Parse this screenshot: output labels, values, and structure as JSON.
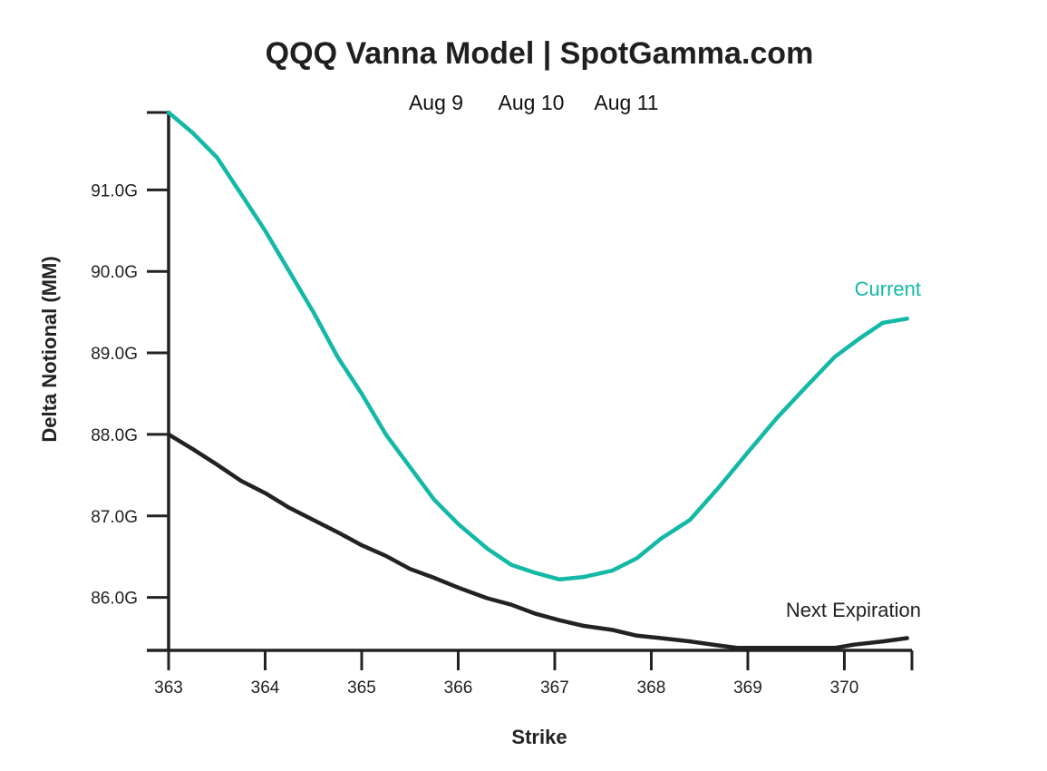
{
  "chart_data": {
    "type": "line",
    "title": "QQQ Vanna Model | SpotGamma.com",
    "subtitle_dates": [
      "Aug 9",
      "Aug 10",
      "Aug 11"
    ],
    "xlabel": "Strike",
    "ylabel": "Delta Notional (MM)",
    "xlim": [
      363,
      370.7
    ],
    "ylim": [
      85.35,
      91.95
    ],
    "x_ticks": [
      "363",
      "364",
      "365",
      "366",
      "367",
      "368",
      "369",
      "370"
    ],
    "y_ticks": [
      "86.0G",
      "87.0G",
      "88.0G",
      "89.0G",
      "90.0G",
      "91.0G"
    ],
    "grid": false,
    "series": [
      {
        "name": "Current",
        "color": "#13b8a6",
        "x": [
          363,
          363.25,
          363.5,
          363.75,
          364,
          364.25,
          364.5,
          364.75,
          365,
          365.25,
          365.5,
          365.75,
          366,
          366.3,
          366.55,
          366.8,
          367.05,
          367.3,
          367.6,
          367.85,
          368.1,
          368.4,
          368.7,
          369,
          369.3,
          369.6,
          369.9,
          370.15,
          370.4,
          370.65
        ],
        "y": [
          91.95,
          91.7,
          91.4,
          90.95,
          90.5,
          90.0,
          89.5,
          88.95,
          88.5,
          88.0,
          87.6,
          87.2,
          86.9,
          86.6,
          86.4,
          86.3,
          86.22,
          86.25,
          86.33,
          86.48,
          86.72,
          86.95,
          87.35,
          87.78,
          88.2,
          88.58,
          88.95,
          89.17,
          89.37,
          89.42
        ]
      },
      {
        "name": "Next Expiration",
        "color": "#222222",
        "x": [
          363,
          363.25,
          363.5,
          363.75,
          364,
          364.25,
          364.5,
          364.75,
          365,
          365.25,
          365.5,
          365.75,
          366,
          366.3,
          366.55,
          366.8,
          367.05,
          367.3,
          367.6,
          367.85,
          368.1,
          368.4,
          368.7,
          368.9,
          369.3,
          369.6,
          369.9,
          370.1,
          370.4,
          370.65
        ],
        "y": [
          88.0,
          87.82,
          87.63,
          87.43,
          87.28,
          87.1,
          86.95,
          86.8,
          86.64,
          86.51,
          86.35,
          86.24,
          86.12,
          85.99,
          85.91,
          85.8,
          85.72,
          85.65,
          85.6,
          85.53,
          85.5,
          85.46,
          85.41,
          85.38,
          85.38,
          85.38,
          85.38,
          85.42,
          85.46,
          85.5
        ]
      }
    ],
    "axis_color": "#222222"
  }
}
